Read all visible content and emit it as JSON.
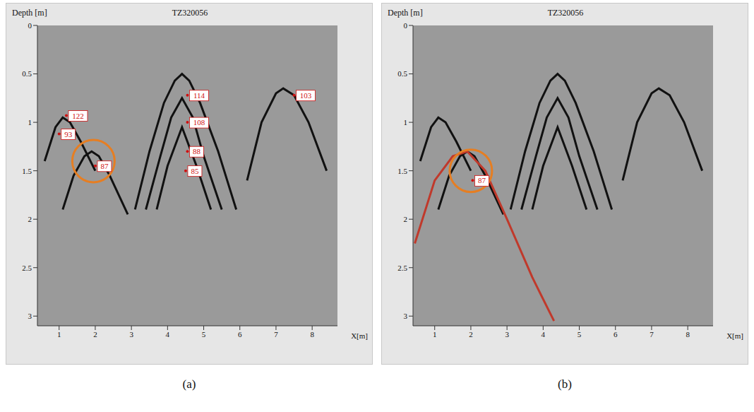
{
  "chart_data": [
    {
      "type": "scatter",
      "panel": "(a)",
      "title": "TZ320056",
      "y_label": "Depth [m]",
      "x_label": "X[m]",
      "xlim": [
        0.4,
        8.7
      ],
      "ylim": [
        0,
        3.1
      ],
      "xticks": [
        1,
        2,
        3,
        4,
        5,
        6,
        7,
        8
      ],
      "yticks": [
        0,
        0.5,
        1,
        1.5,
        2,
        2.5,
        3
      ],
      "series": [
        {
          "color": "#111111",
          "line_style": "solid",
          "points": [
            [
              0.6,
              1.4
            ],
            [
              0.9,
              1.05
            ],
            [
              1.1,
              0.95
            ],
            [
              1.3,
              1.0
            ],
            [
              1.6,
              1.2
            ],
            [
              2.0,
              1.5
            ]
          ]
        },
        {
          "color": "#111111",
          "line_style": "solid",
          "points": [
            [
              1.1,
              1.9
            ],
            [
              1.4,
              1.55
            ],
            [
              1.7,
              1.35
            ],
            [
              1.9,
              1.3
            ],
            [
              2.1,
              1.35
            ],
            [
              2.4,
              1.55
            ],
            [
              2.9,
              1.95
            ]
          ]
        },
        {
          "color": "#111111",
          "line_style": "solid",
          "points": [
            [
              3.1,
              1.9
            ],
            [
              3.5,
              1.3
            ],
            [
              3.9,
              0.8
            ],
            [
              4.2,
              0.57
            ],
            [
              4.4,
              0.5
            ],
            [
              4.6,
              0.57
            ],
            [
              4.9,
              0.8
            ],
            [
              5.4,
              1.3
            ],
            [
              5.9,
              1.9
            ]
          ]
        },
        {
          "color": "#111111",
          "line_style": "solid",
          "points": [
            [
              3.4,
              1.9
            ],
            [
              3.8,
              1.35
            ],
            [
              4.1,
              0.95
            ],
            [
              4.4,
              0.75
            ],
            [
              4.7,
              0.95
            ],
            [
              5.0,
              1.35
            ],
            [
              5.5,
              1.9
            ]
          ]
        },
        {
          "color": "#111111",
          "line_style": "solid",
          "points": [
            [
              3.7,
              1.9
            ],
            [
              4.0,
              1.45
            ],
            [
              4.4,
              1.05
            ],
            [
              4.8,
              1.45
            ],
            [
              5.2,
              1.9
            ]
          ]
        },
        {
          "color": "#111111",
          "line_style": "solid",
          "points": [
            [
              6.2,
              1.6
            ],
            [
              6.6,
              1.0
            ],
            [
              7.0,
              0.7
            ],
            [
              7.2,
              0.65
            ],
            [
              7.5,
              0.72
            ],
            [
              7.9,
              1.0
            ],
            [
              8.4,
              1.5
            ]
          ]
        }
      ],
      "circles": [
        {
          "x": 1.95,
          "y": 1.4,
          "color": "#e67e22"
        }
      ],
      "annotations": [
        {
          "text": "122",
          "x": 1.2,
          "y": 0.93
        },
        {
          "text": "93",
          "x": 1.0,
          "y": 1.12
        },
        {
          "text": "87",
          "x": 2.0,
          "y": 1.45
        },
        {
          "text": "114",
          "x": 4.55,
          "y": 0.72
        },
        {
          "text": "108",
          "x": 4.55,
          "y": 1.0
        },
        {
          "text": "88",
          "x": 4.55,
          "y": 1.3
        },
        {
          "text": "85",
          "x": 4.5,
          "y": 1.5
        },
        {
          "text": "103",
          "x": 7.5,
          "y": 0.72
        }
      ]
    },
    {
      "type": "scatter",
      "panel": "(b)",
      "title": "TZ320056",
      "y_label": "Depth [m]",
      "x_label": "X[m]",
      "xlim": [
        0.4,
        8.7
      ],
      "ylim": [
        0,
        3.1
      ],
      "xticks": [
        1,
        2,
        3,
        4,
        5,
        6,
        7,
        8
      ],
      "yticks": [
        0,
        0.5,
        1,
        1.5,
        2,
        2.5,
        3
      ],
      "series": [
        {
          "color": "#111111",
          "line_style": "solid",
          "points": [
            [
              0.6,
              1.4
            ],
            [
              0.9,
              1.05
            ],
            [
              1.1,
              0.95
            ],
            [
              1.3,
              1.0
            ],
            [
              1.6,
              1.2
            ],
            [
              2.0,
              1.5
            ]
          ]
        },
        {
          "color": "#111111",
          "line_style": "solid",
          "points": [
            [
              1.1,
              1.9
            ],
            [
              1.4,
              1.55
            ],
            [
              1.7,
              1.35
            ],
            [
              1.9,
              1.3
            ],
            [
              2.1,
              1.35
            ],
            [
              2.4,
              1.55
            ],
            [
              2.9,
              1.95
            ]
          ]
        },
        {
          "color": "#111111",
          "line_style": "solid",
          "points": [
            [
              3.1,
              1.9
            ],
            [
              3.5,
              1.3
            ],
            [
              3.9,
              0.8
            ],
            [
              4.2,
              0.57
            ],
            [
              4.4,
              0.5
            ],
            [
              4.6,
              0.57
            ],
            [
              4.9,
              0.8
            ],
            [
              5.4,
              1.3
            ],
            [
              5.9,
              1.9
            ]
          ]
        },
        {
          "color": "#111111",
          "line_style": "solid",
          "points": [
            [
              3.4,
              1.9
            ],
            [
              3.8,
              1.35
            ],
            [
              4.1,
              0.95
            ],
            [
              4.4,
              0.75
            ],
            [
              4.7,
              0.95
            ],
            [
              5.0,
              1.35
            ],
            [
              5.5,
              1.9
            ]
          ]
        },
        {
          "color": "#111111",
          "line_style": "solid",
          "points": [
            [
              3.7,
              1.9
            ],
            [
              4.0,
              1.45
            ],
            [
              4.4,
              1.05
            ],
            [
              4.8,
              1.45
            ],
            [
              5.2,
              1.9
            ]
          ]
        },
        {
          "color": "#111111",
          "line_style": "solid",
          "points": [
            [
              6.2,
              1.6
            ],
            [
              6.6,
              1.0
            ],
            [
              7.0,
              0.7
            ],
            [
              7.2,
              0.65
            ],
            [
              7.5,
              0.72
            ],
            [
              7.9,
              1.0
            ],
            [
              8.4,
              1.5
            ]
          ]
        },
        {
          "color": "#c0392b",
          "line_style": "solid",
          "points": [
            [
              0.45,
              2.25
            ],
            [
              1.0,
              1.6
            ],
            [
              1.5,
              1.35
            ],
            [
              1.9,
              1.3
            ],
            [
              2.4,
              1.5
            ],
            [
              3.0,
              2.0
            ],
            [
              3.7,
              2.6
            ],
            [
              4.3,
              3.05
            ]
          ]
        }
      ],
      "circles": [
        {
          "x": 2.0,
          "y": 1.5,
          "color": "#e67e22"
        }
      ],
      "annotations": [
        {
          "text": "87",
          "x": 2.05,
          "y": 1.6
        }
      ]
    }
  ]
}
